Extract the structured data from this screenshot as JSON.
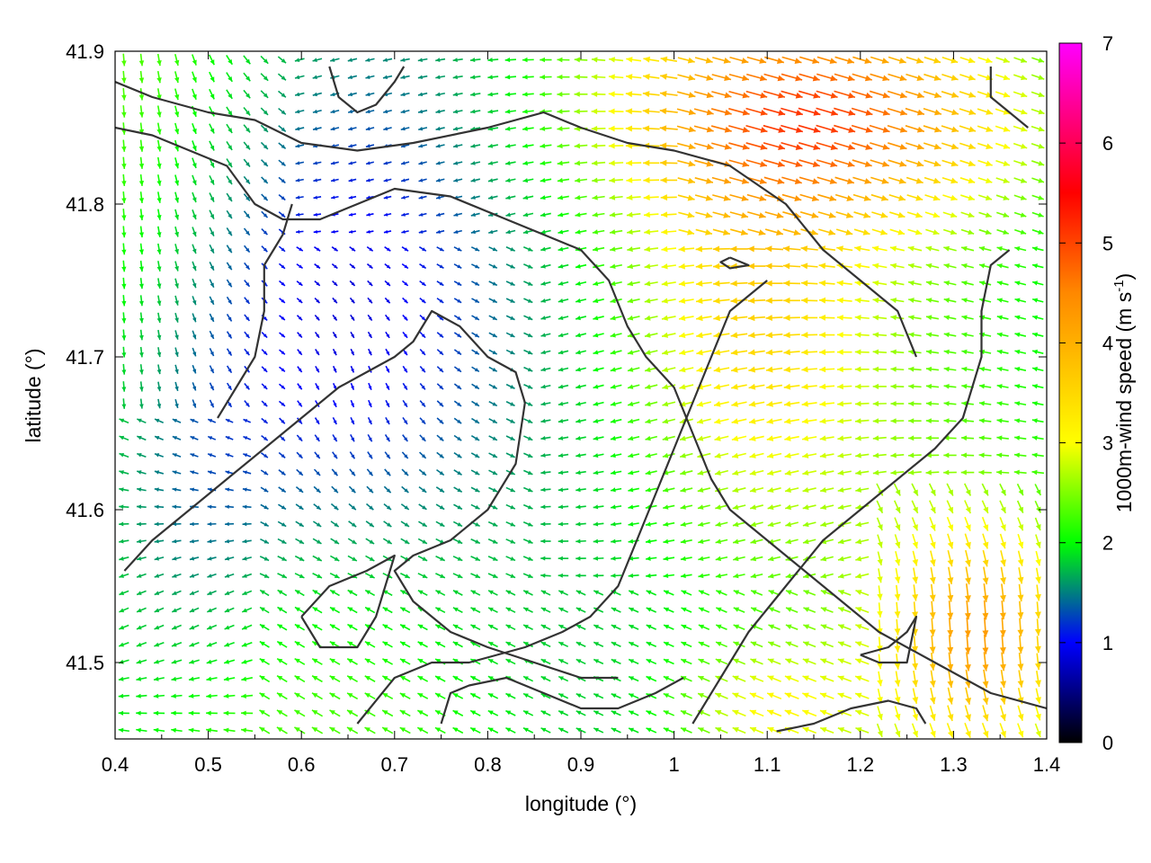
{
  "chart_data": {
    "type": "vector-field",
    "xlabel": "longitude (°)",
    "ylabel": "latitude (°)",
    "xlim": [
      0.4,
      1.4
    ],
    "ylim": [
      41.45,
      41.9
    ],
    "xticks": [
      "0.4",
      "0.5",
      "0.6",
      "0.7",
      "0.8",
      "0.9",
      "1",
      "1.1",
      "1.2",
      "1.3",
      "1.4"
    ],
    "yticks": [
      "41.5",
      "41.6",
      "41.7",
      "41.8",
      "41.9"
    ],
    "grid": false,
    "colorbar": {
      "label": "1000m-wind speed (m s",
      "label_superscript": "-1",
      "label_close": ")",
      "range": [
        0,
        7
      ],
      "ticks": [
        "0",
        "1",
        "2",
        "3",
        "4",
        "5",
        "6",
        "7"
      ],
      "colors": [
        "#000000",
        "#0000ff",
        "#00ff00",
        "#ffff00",
        "#ff8800",
        "#ff0000",
        "#ff00ff"
      ]
    },
    "field_summary": {
      "calm_zone_speed": 0.3,
      "western_basin_speed": 1.1,
      "central_flow_speed": 2.1,
      "northeast_jet_speed": 4.6,
      "southeast_speed": 4.0
    },
    "contours": [
      [
        [
          0.4,
          41.88
        ],
        [
          0.44,
          41.87
        ],
        [
          0.5,
          41.86
        ],
        [
          0.55,
          41.855
        ],
        [
          0.6,
          41.84
        ],
        [
          0.66,
          41.835
        ],
        [
          0.72,
          41.84
        ],
        [
          0.8,
          41.85
        ],
        [
          0.86,
          41.86
        ],
        [
          0.9,
          41.85
        ],
        [
          0.95,
          41.84
        ],
        [
          1.0,
          41.835
        ],
        [
          1.06,
          41.825
        ],
        [
          1.12,
          41.8
        ],
        [
          1.16,
          41.77
        ],
        [
          1.2,
          41.75
        ],
        [
          1.24,
          41.73
        ],
        [
          1.26,
          41.7
        ]
      ],
      [
        [
          0.4,
          41.85
        ],
        [
          0.44,
          41.845
        ],
        [
          0.48,
          41.835
        ],
        [
          0.52,
          41.825
        ],
        [
          0.55,
          41.8
        ],
        [
          0.58,
          41.79
        ],
        [
          0.62,
          41.79
        ],
        [
          0.66,
          41.8
        ],
        [
          0.7,
          41.81
        ],
        [
          0.76,
          41.805
        ],
        [
          0.82,
          41.79
        ],
        [
          0.86,
          41.78
        ],
        [
          0.9,
          41.77
        ],
        [
          0.93,
          41.75
        ],
        [
          0.95,
          41.72
        ],
        [
          0.97,
          41.7
        ],
        [
          1.0,
          41.68
        ],
        [
          1.02,
          41.65
        ],
        [
          1.04,
          41.62
        ],
        [
          1.06,
          41.6
        ],
        [
          1.1,
          41.58
        ],
        [
          1.16,
          41.55
        ],
        [
          1.22,
          41.52
        ],
        [
          1.28,
          41.5
        ],
        [
          1.34,
          41.48
        ],
        [
          1.4,
          41.47
        ]
      ],
      [
        [
          0.51,
          41.66
        ],
        [
          0.53,
          41.68
        ],
        [
          0.55,
          41.7
        ],
        [
          0.56,
          41.73
        ],
        [
          0.56,
          41.76
        ],
        [
          0.58,
          41.78
        ],
        [
          0.59,
          41.8
        ]
      ],
      [
        [
          0.41,
          41.56
        ],
        [
          0.44,
          41.58
        ],
        [
          0.48,
          41.6
        ],
        [
          0.52,
          41.62
        ],
        [
          0.56,
          41.64
        ],
        [
          0.6,
          41.66
        ],
        [
          0.64,
          41.68
        ],
        [
          0.67,
          41.69
        ],
        [
          0.7,
          41.7
        ],
        [
          0.72,
          41.71
        ],
        [
          0.74,
          41.73
        ],
        [
          0.77,
          41.72
        ],
        [
          0.8,
          41.7
        ],
        [
          0.83,
          41.69
        ],
        [
          0.84,
          41.67
        ],
        [
          0.83,
          41.63
        ],
        [
          0.8,
          41.6
        ],
        [
          0.76,
          41.58
        ],
        [
          0.72,
          41.57
        ],
        [
          0.7,
          41.56
        ],
        [
          0.72,
          41.54
        ],
        [
          0.76,
          41.52
        ],
        [
          0.8,
          41.51
        ],
        [
          0.85,
          41.5
        ],
        [
          0.9,
          41.49
        ],
        [
          0.94,
          41.49
        ]
      ],
      [
        [
          0.6,
          41.53
        ],
        [
          0.63,
          41.55
        ],
        [
          0.67,
          41.56
        ],
        [
          0.7,
          41.57
        ],
        [
          0.68,
          41.53
        ],
        [
          0.66,
          41.51
        ],
        [
          0.62,
          41.51
        ],
        [
          0.6,
          41.53
        ]
      ],
      [
        [
          1.02,
          41.46
        ],
        [
          1.05,
          41.49
        ],
        [
          1.08,
          41.52
        ],
        [
          1.12,
          41.55
        ],
        [
          1.16,
          41.58
        ],
        [
          1.2,
          41.6
        ],
        [
          1.24,
          41.62
        ],
        [
          1.28,
          41.64
        ],
        [
          1.31,
          41.66
        ],
        [
          1.33,
          41.7
        ],
        [
          1.33,
          41.73
        ],
        [
          1.34,
          41.76
        ],
        [
          1.36,
          41.77
        ]
      ],
      [
        [
          1.2,
          41.505
        ],
        [
          1.23,
          41.51
        ],
        [
          1.25,
          41.52
        ],
        [
          1.26,
          41.53
        ],
        [
          1.25,
          41.5
        ],
        [
          1.22,
          41.5
        ],
        [
          1.2,
          41.505
        ]
      ],
      [
        [
          0.66,
          41.46
        ],
        [
          0.7,
          41.49
        ],
        [
          0.74,
          41.5
        ],
        [
          0.78,
          41.5
        ],
        [
          0.84,
          41.51
        ],
        [
          0.88,
          41.52
        ],
        [
          0.91,
          41.53
        ],
        [
          0.94,
          41.55
        ],
        [
          0.96,
          41.58
        ],
        [
          0.98,
          41.61
        ],
        [
          1.0,
          41.64
        ],
        [
          1.02,
          41.67
        ],
        [
          1.04,
          41.7
        ],
        [
          1.06,
          41.73
        ],
        [
          1.08,
          41.74
        ],
        [
          1.1,
          41.75
        ]
      ],
      [
        [
          0.75,
          41.46
        ],
        [
          0.76,
          41.48
        ],
        [
          0.78,
          41.485
        ],
        [
          0.82,
          41.49
        ],
        [
          0.86,
          41.48
        ],
        [
          0.9,
          41.47
        ],
        [
          0.94,
          41.47
        ],
        [
          0.98,
          41.48
        ],
        [
          1.01,
          41.49
        ]
      ],
      [
        [
          1.11,
          41.455
        ],
        [
          1.15,
          41.46
        ],
        [
          1.19,
          41.47
        ],
        [
          1.23,
          41.475
        ],
        [
          1.26,
          41.47
        ],
        [
          1.27,
          41.46
        ]
      ],
      [
        [
          1.06,
          41.765
        ],
        [
          1.08,
          41.76
        ],
        [
          1.06,
          41.758
        ],
        [
          1.05,
          41.762
        ],
        [
          1.06,
          41.765
        ]
      ],
      [
        [
          0.63,
          41.89
        ],
        [
          0.64,
          41.87
        ],
        [
          0.66,
          41.86
        ],
        [
          0.68,
          41.865
        ],
        [
          0.7,
          41.88
        ],
        [
          0.71,
          41.89
        ]
      ],
      [
        [
          1.34,
          41.89
        ],
        [
          1.34,
          41.87
        ],
        [
          1.36,
          41.86
        ],
        [
          1.38,
          41.85
        ]
      ]
    ]
  }
}
